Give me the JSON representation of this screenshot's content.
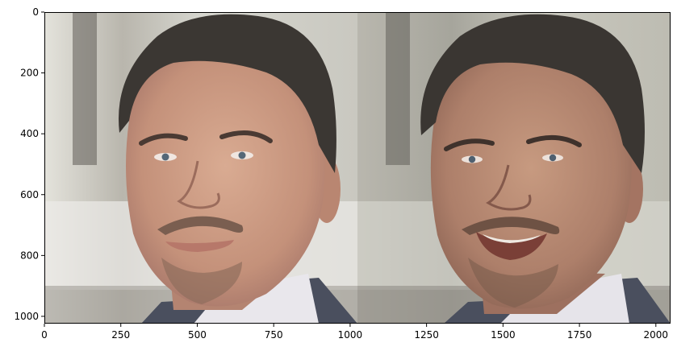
{
  "figure": {
    "panels": [
      {
        "name": "left-face",
        "description_key": "neutral"
      },
      {
        "name": "right-face",
        "description_key": "smiling"
      }
    ]
  },
  "axes": {
    "x_ticks": [
      {
        "value": 0,
        "label": "0"
      },
      {
        "value": 250,
        "label": "250"
      },
      {
        "value": 500,
        "label": "500"
      },
      {
        "value": 750,
        "label": "750"
      },
      {
        "value": 1000,
        "label": "1000"
      },
      {
        "value": 1250,
        "label": "1250"
      },
      {
        "value": 1500,
        "label": "1500"
      },
      {
        "value": 1750,
        "label": "1750"
      },
      {
        "value": 2000,
        "label": "2000"
      }
    ],
    "y_ticks": [
      {
        "value": 0,
        "label": "0"
      },
      {
        "value": 200,
        "label": "200"
      },
      {
        "value": 400,
        "label": "400"
      },
      {
        "value": 600,
        "label": "600"
      },
      {
        "value": 800,
        "label": "800"
      },
      {
        "value": 1000,
        "label": "1000"
      }
    ],
    "x_range": [
      0,
      2048
    ],
    "y_range": [
      0,
      1024
    ]
  },
  "colors": {
    "skin": "#c99a82",
    "skin_shadow": "#a8796a",
    "hair": "#3b3733",
    "beard": "#7a5e50",
    "background_left": "#dcdcd6",
    "background_right": "#cbc9c0",
    "jacket": "#4a4f5e",
    "shirt": "#e9e7ec"
  }
}
